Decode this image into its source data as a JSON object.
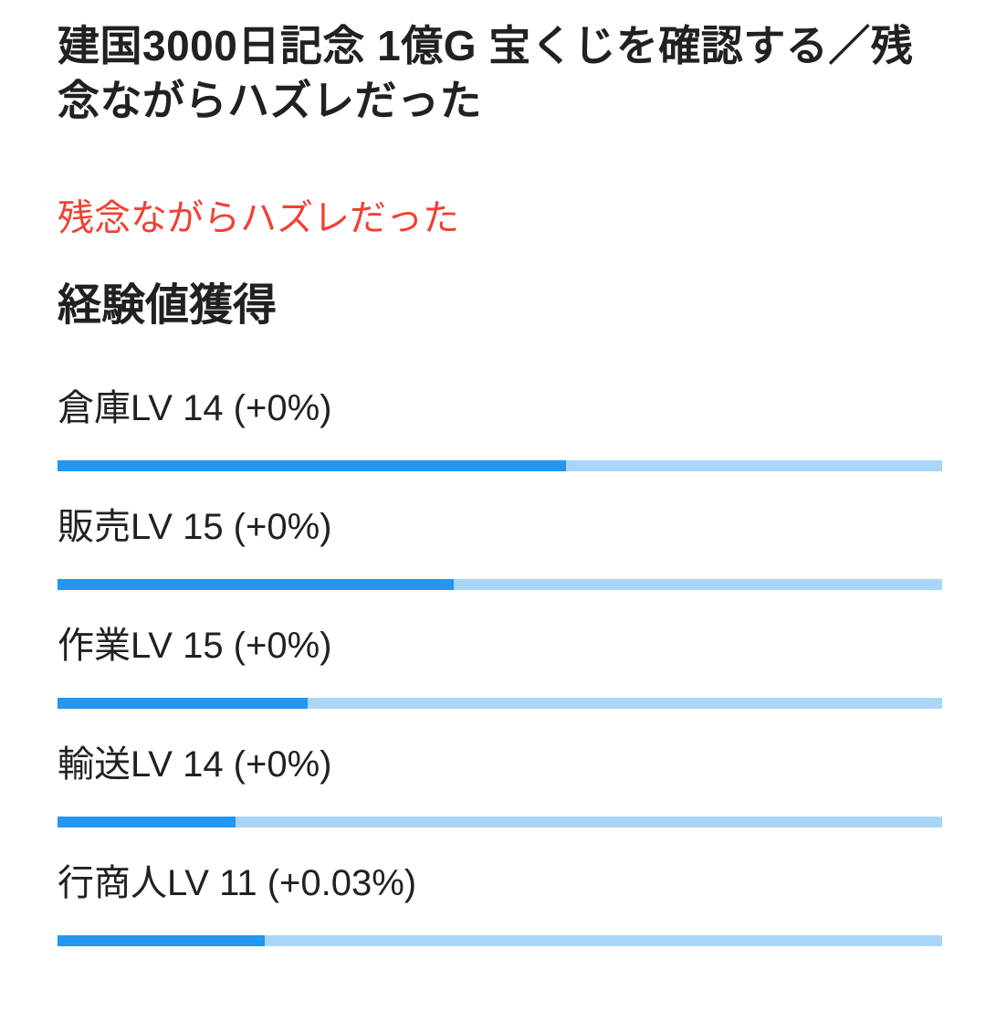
{
  "page": {
    "title": "建国3000日記念 1億G 宝くじを確認する／残念ながらハズレだった",
    "result_message": "残念ながらハズレだった",
    "section_heading": "経験値獲得"
  },
  "skills": [
    {
      "label": "倉庫LV 14 (+0%)",
      "percent": 57.5
    },
    {
      "label": "販売LV 15 (+0%)",
      "percent": 44.8
    },
    {
      "label": "作業LV 15 (+0%)",
      "percent": 28.3
    },
    {
      "label": "輸送LV 14 (+0%)",
      "percent": 20.1
    },
    {
      "label": "行商人LV 11 (+0.03%)",
      "percent": 23.4
    }
  ],
  "colors": {
    "text": "#212121",
    "alert": "#f04134",
    "progress_fill": "#2196f3",
    "progress_track": "#a9d6f8",
    "background": "#ffffff"
  }
}
